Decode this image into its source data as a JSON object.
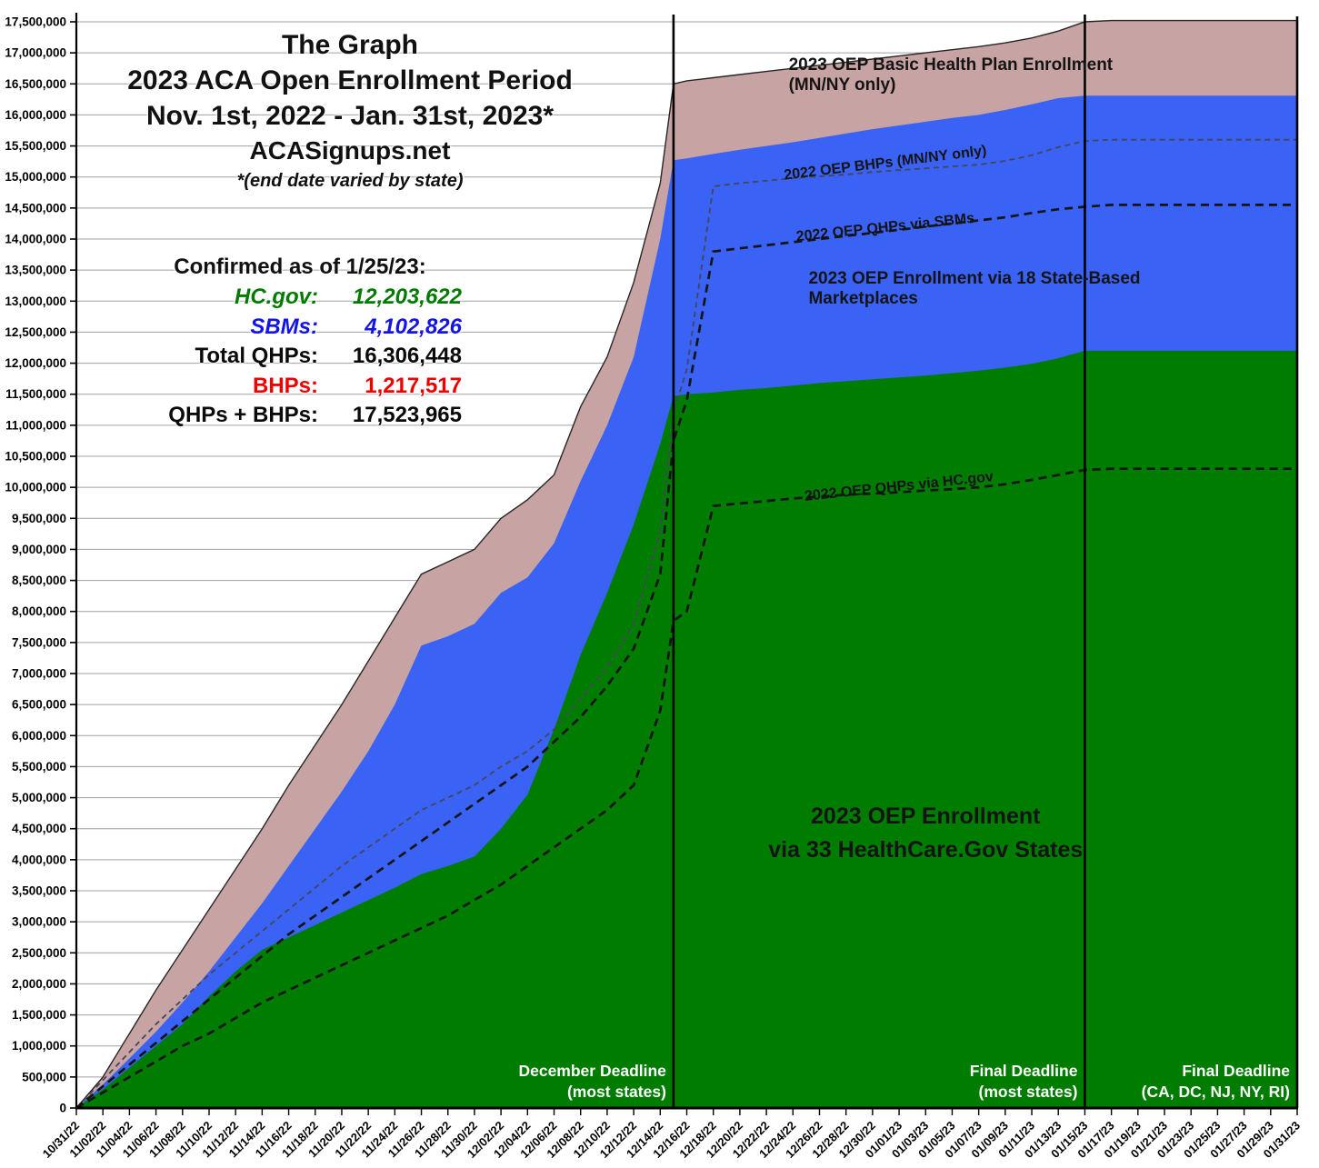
{
  "header": {
    "title_line1": "The Graph",
    "title_line2": "2023 ACA Open Enrollment Period",
    "title_line3": "Nov. 1st, 2022 - Jan. 31st, 2023*",
    "title_line4": "ACASignups.net",
    "title_line5": "*(end date varied by state)"
  },
  "stats": {
    "heading": "Confirmed as of 1/25/23:",
    "rows": [
      {
        "label": "HC.gov:",
        "value": "12,203,622",
        "color": "#007a00",
        "italic": true
      },
      {
        "label": "SBMs:",
        "value": "4,102,826",
        "color": "#1414e6",
        "italic": true
      },
      {
        "label": "Total QHPs:",
        "value": "16,306,448",
        "color": "#0a0a0a",
        "italic": false
      },
      {
        "label": "BHPs:",
        "value": "1,217,517",
        "color": "#ee0000",
        "italic": false
      },
      {
        "label": "QHPs + BHPs:",
        "value": "17,523,965",
        "color": "#0a0a0a",
        "italic": false
      }
    ]
  },
  "chart_data": {
    "type": "area",
    "title": "2023 ACA Open Enrollment Period (The Graph)",
    "xlabel": "",
    "ylabel": "",
    "unit": "cumulative enrollees, values in millions",
    "grid": true,
    "ylim_millions": [
      0,
      17.5
    ],
    "y_tick_step_millions": 0.5,
    "y_tick_labels": [
      "0",
      "500,000",
      "1,000,000",
      "1,500,000",
      "2,000,000",
      "2,500,000",
      "3,000,000",
      "3,500,000",
      "4,000,000",
      "4,500,000",
      "5,000,000",
      "5,500,000",
      "6,000,000",
      "6,500,000",
      "7,000,000",
      "7,500,000",
      "8,000,000",
      "8,500,000",
      "9,000,000",
      "9,500,000",
      "10,000,000",
      "10,500,000",
      "11,000,000",
      "11,500,000",
      "12,000,000",
      "12,500,000",
      "13,000,000",
      "13,500,000",
      "14,000,000",
      "14,500,000",
      "15,000,000",
      "15,500,000",
      "16,000,000",
      "16,500,000",
      "17,000,000",
      "17,500,000"
    ],
    "x": [
      "10/31/22",
      "11/02/22",
      "11/04/22",
      "11/06/22",
      "11/08/22",
      "11/10/22",
      "11/12/22",
      "11/14/22",
      "11/16/22",
      "11/18/22",
      "11/20/22",
      "11/22/22",
      "11/24/22",
      "11/26/22",
      "11/28/22",
      "11/30/22",
      "12/02/22",
      "12/04/22",
      "12/06/22",
      "12/08/22",
      "12/10/22",
      "12/12/22",
      "12/14/22",
      "12/15/22",
      "12/16/22",
      "12/18/22",
      "12/20/22",
      "12/22/22",
      "12/24/22",
      "12/26/22",
      "12/28/22",
      "12/30/22",
      "01/01/23",
      "01/03/23",
      "01/05/23",
      "01/07/23",
      "01/09/23",
      "01/11/23",
      "01/13/23",
      "01/15/23",
      "01/17/23",
      "01/19/23",
      "01/21/23",
      "01/23/23",
      "01/25/23",
      "01/27/23",
      "01/29/23",
      "01/31/23"
    ],
    "x_axis_tick_labels": [
      "10/31/22",
      "11/02/22",
      "11/04/22",
      "11/06/22",
      "11/08/22",
      "11/10/22",
      "11/12/22",
      "11/14/22",
      "11/16/22",
      "11/18/22",
      "11/20/22",
      "11/22/22",
      "11/24/22",
      "11/26/22",
      "11/28/22",
      "11/30/22",
      "12/02/22",
      "12/04/22",
      "12/06/22",
      "12/08/22",
      "12/10/22",
      "12/12/22",
      "12/14/22",
      "12/16/22",
      "12/18/22",
      "12/20/22",
      "12/22/22",
      "12/24/22",
      "12/26/22",
      "12/28/22",
      "12/30/22",
      "01/01/23",
      "01/03/23",
      "01/05/23",
      "01/07/23",
      "01/09/23",
      "01/11/23",
      "01/13/23",
      "01/15/23",
      "01/17/23",
      "01/19/23",
      "01/21/23",
      "01/23/23",
      "01/25/23",
      "01/27/23",
      "01/29/23",
      "01/31/23"
    ],
    "series": [
      {
        "name": "2023 OEP QHPs + BHPs total (pink area top)",
        "type": "area",
        "color": "#c8a3a3",
        "values": [
          0,
          0.5,
          1.2,
          1.9,
          2.55,
          3.2,
          3.85,
          4.5,
          5.2,
          5.85,
          6.5,
          7.2,
          7.9,
          8.6,
          8.8,
          9.0,
          9.5,
          9.8,
          10.2,
          11.3,
          12.1,
          13.3,
          14.9,
          16.5,
          16.55,
          16.6,
          16.65,
          16.7,
          16.75,
          16.8,
          16.85,
          16.9,
          16.95,
          17.0,
          17.05,
          17.1,
          17.16,
          17.24,
          17.35,
          17.5,
          17.52,
          17.52,
          17.52,
          17.52,
          17.52,
          17.52,
          17.52,
          17.52
        ]
      },
      {
        "name": "2023 OEP total QHPs = HC.gov + SBMs (blue area top)",
        "type": "area",
        "color": "#3a62f5",
        "values": [
          0,
          0.38,
          0.8,
          1.23,
          1.7,
          2.2,
          2.75,
          3.3,
          3.9,
          4.5,
          5.1,
          5.75,
          6.5,
          7.45,
          7.6,
          7.8,
          8.3,
          8.55,
          9.1,
          10.1,
          11.0,
          12.1,
          14.0,
          15.27,
          15.3,
          15.37,
          15.44,
          15.5,
          15.56,
          15.63,
          15.7,
          15.77,
          15.83,
          15.89,
          15.95,
          16.0,
          16.08,
          16.17,
          16.27,
          16.31,
          16.31,
          16.31,
          16.31,
          16.31,
          16.31,
          16.31,
          16.31,
          16.31
        ]
      },
      {
        "name": "2023 OEP QHPs via HealthCare.gov (green area top)",
        "type": "area",
        "color": "#007c00",
        "values": [
          0,
          0.3,
          0.65,
          1.0,
          1.35,
          1.8,
          2.2,
          2.55,
          2.75,
          2.95,
          3.15,
          3.35,
          3.55,
          3.77,
          3.9,
          4.05,
          4.5,
          5.05,
          6.1,
          7.3,
          8.3,
          9.4,
          10.7,
          11.47,
          11.5,
          11.53,
          11.57,
          11.6,
          11.64,
          11.68,
          11.71,
          11.74,
          11.77,
          11.8,
          11.84,
          11.88,
          11.93,
          11.99,
          12.08,
          12.2,
          12.2,
          12.2,
          12.2,
          12.2,
          12.2,
          12.2,
          12.2,
          12.2
        ]
      },
      {
        "name": "2022 OEP QHPs + BHPs (gray dashed line)",
        "type": "dashed-line",
        "color": "#45455a",
        "values": [
          0,
          0.45,
          0.9,
          1.35,
          1.75,
          2.15,
          2.5,
          2.85,
          3.2,
          3.55,
          3.9,
          4.2,
          4.5,
          4.8,
          5.0,
          5.2,
          5.5,
          5.75,
          6.1,
          6.6,
          7.1,
          7.8,
          9.3,
          11.2,
          11.9,
          14.85,
          14.9,
          14.94,
          14.98,
          15.01,
          15.04,
          15.08,
          15.11,
          15.14,
          15.17,
          15.2,
          15.26,
          15.35,
          15.48,
          15.58,
          15.6,
          15.6,
          15.6,
          15.6,
          15.6,
          15.6,
          15.6,
          15.6
        ]
      },
      {
        "name": "2022 OEP total QHPs incl. SBMs (black dashed line)",
        "type": "dashed-line",
        "color": "#141414",
        "values": [
          0,
          0.35,
          0.7,
          1.05,
          1.4,
          1.75,
          2.1,
          2.45,
          2.8,
          3.1,
          3.4,
          3.7,
          4.0,
          4.3,
          4.6,
          4.9,
          5.2,
          5.5,
          5.9,
          6.3,
          6.8,
          7.4,
          8.6,
          10.75,
          11.4,
          13.8,
          13.85,
          13.9,
          13.95,
          14.0,
          14.05,
          14.1,
          14.15,
          14.2,
          14.25,
          14.3,
          14.35,
          14.42,
          14.48,
          14.52,
          14.55,
          14.55,
          14.55,
          14.55,
          14.55,
          14.55,
          14.55,
          14.55
        ]
      },
      {
        "name": "2022 OEP QHPs via HC.gov (black dashed line)",
        "type": "dashed-line",
        "color": "#141414",
        "values": [
          0,
          0.25,
          0.5,
          0.75,
          1.0,
          1.2,
          1.45,
          1.7,
          1.9,
          2.1,
          2.3,
          2.5,
          2.7,
          2.9,
          3.1,
          3.35,
          3.6,
          3.9,
          4.2,
          4.5,
          4.8,
          5.2,
          6.4,
          7.85,
          8.0,
          9.7,
          9.74,
          9.78,
          9.82,
          9.85,
          9.88,
          9.9,
          9.92,
          9.95,
          9.97,
          10.0,
          10.05,
          10.12,
          10.2,
          10.28,
          10.3,
          10.3,
          10.3,
          10.3,
          10.3,
          10.3,
          10.3,
          10.3
        ]
      }
    ],
    "annotations": [
      {
        "text": "2023 OEP Basic Health Plan Enrollment (MN/NY only)",
        "date": "01/06/23",
        "y": 16.64,
        "rotate": 0,
        "size": 19
      },
      {
        "text": "2022 OEP BHPs (MN/NY only)",
        "date": "12/31/22",
        "y": 15.22,
        "rotate": -7,
        "size": 16
      },
      {
        "text": "2022 OEP QHPs via SBMs",
        "date": "12/31/22",
        "y": 14.18,
        "rotate": -6,
        "size": 16
      },
      {
        "text": "2023 OEP Enrollment via 18 State-Based Marketplaces",
        "date": "01/07/23",
        "y": 13.2,
        "rotate": 0,
        "size": 19
      },
      {
        "text": "2022 OEP QHPs via HC.gov",
        "date": "01/01/23",
        "y": 10.0,
        "rotate": -6,
        "size": 16
      },
      {
        "text_line1": "2023 OEP Enrollment",
        "text_line2": "via 33 HealthCare.Gov States",
        "date": "01/03/23",
        "y": 4.42,
        "rotate": 0,
        "size": 25
      }
    ],
    "deadlines": [
      {
        "date": "12/15/22",
        "label_line1": "December Deadline",
        "label_line2": "(most states)"
      },
      {
        "date": "01/15/23",
        "label_line1": "Final Deadline",
        "label_line2": "(most states)"
      },
      {
        "date": "01/31/23",
        "label_line1": "Final Deadline",
        "label_line2": "(CA, DC, NJ, NY, RI)"
      }
    ],
    "legend_position": "labels drawn inside chart areas"
  }
}
